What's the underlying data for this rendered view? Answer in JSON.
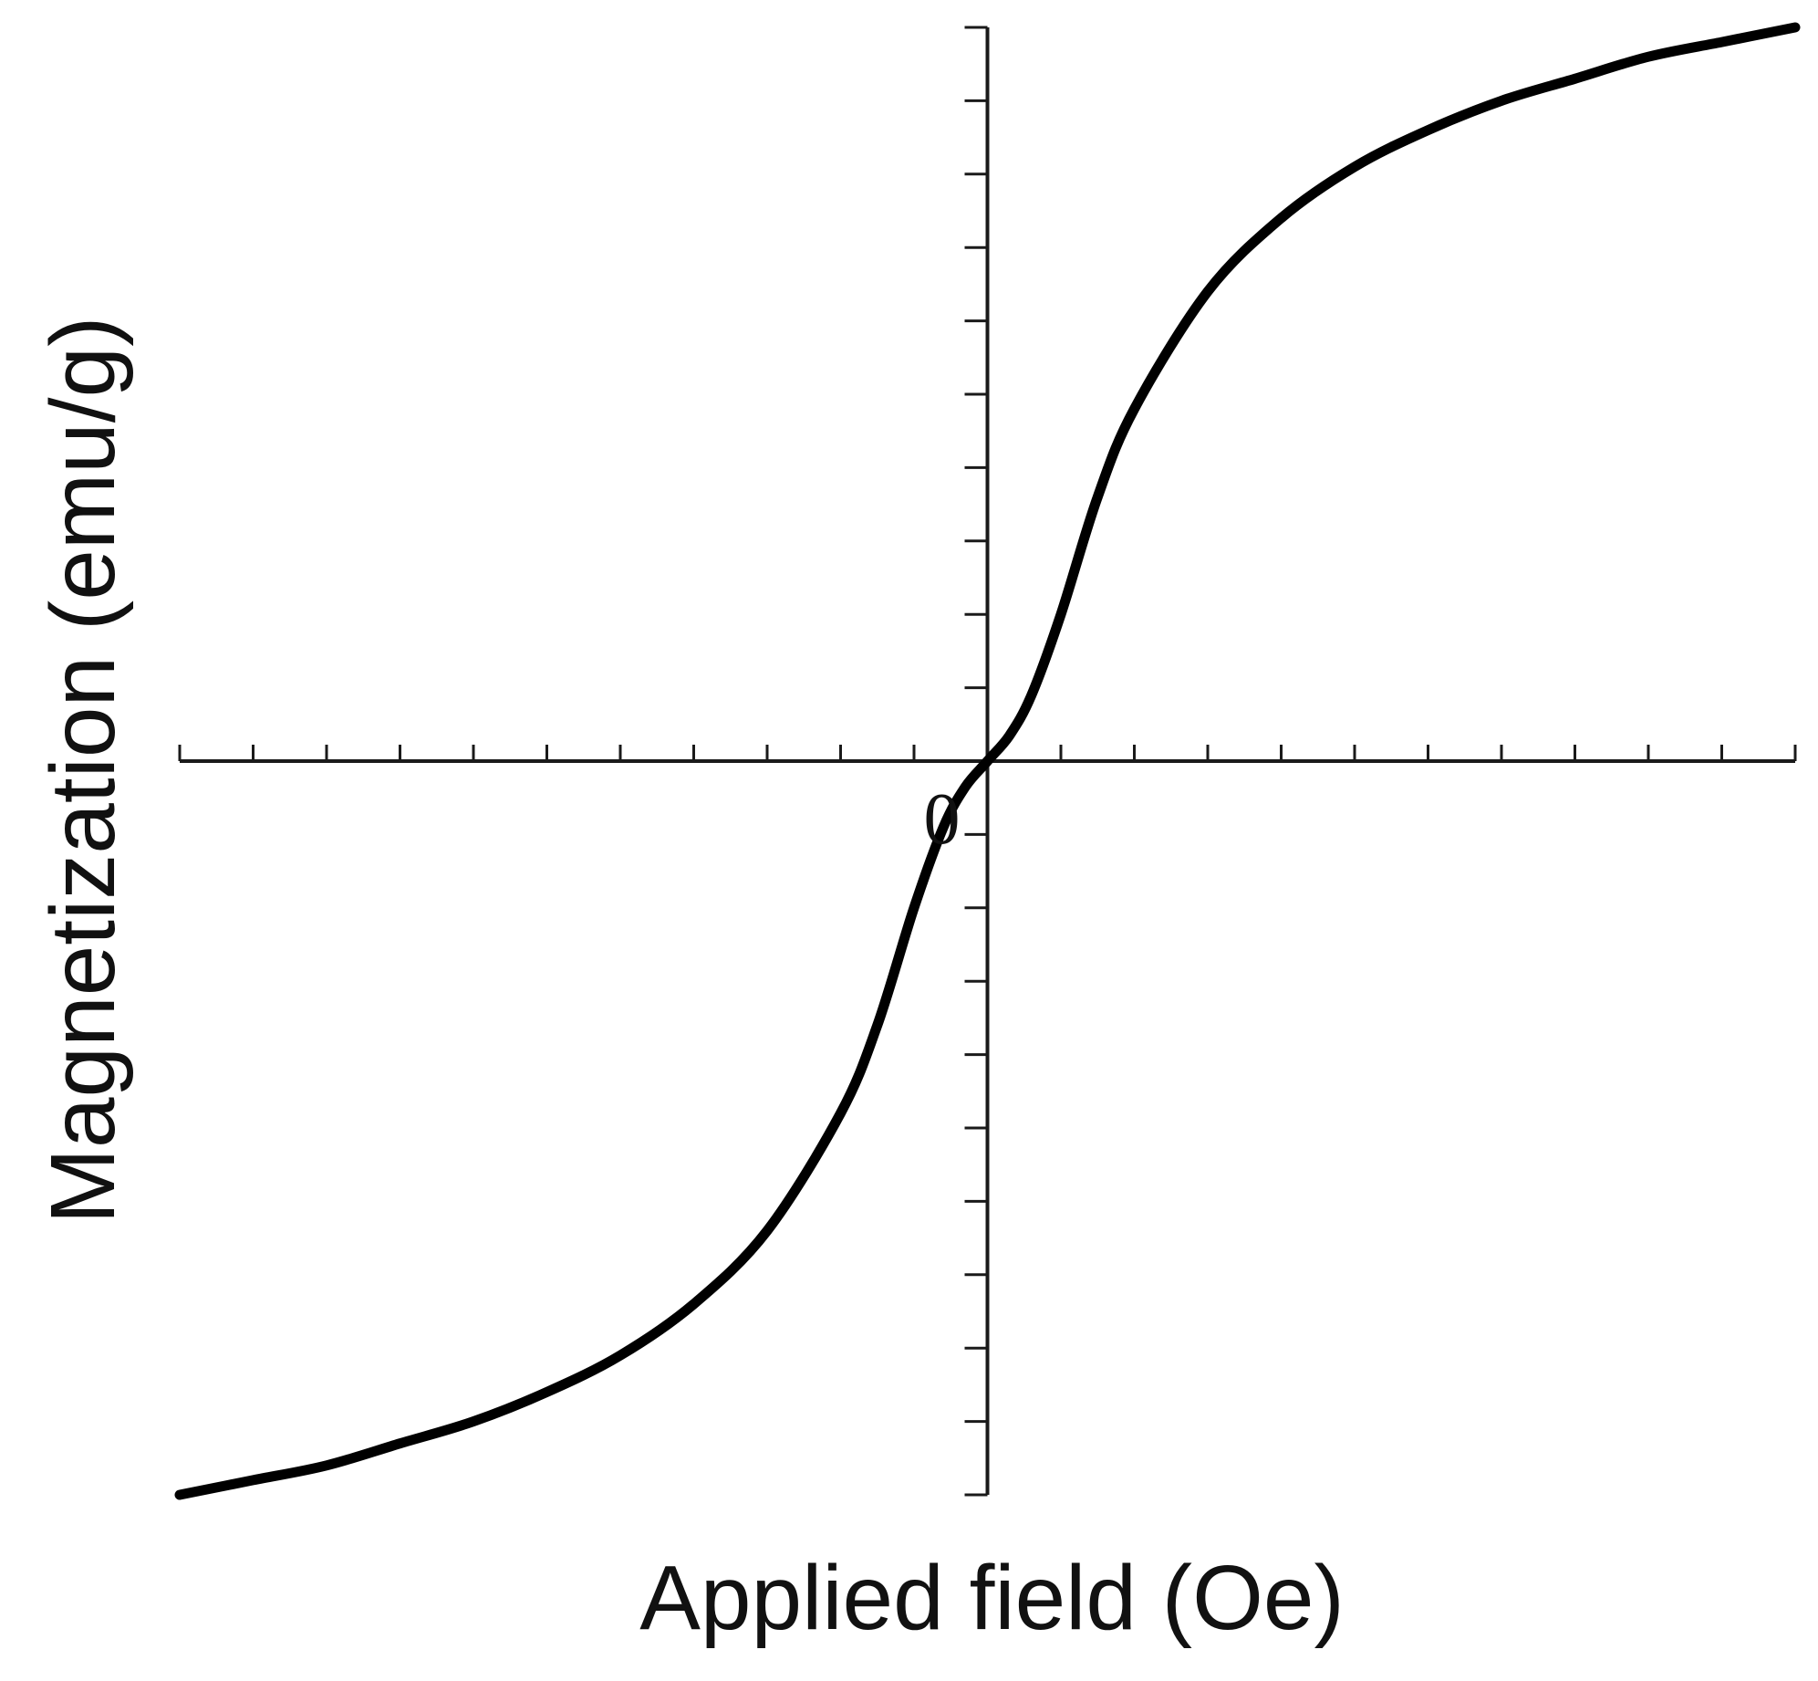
{
  "chart_data": {
    "type": "line",
    "title": "",
    "xlabel": "Applied field (Oe)",
    "ylabel": "Magnetization (emu/g)",
    "xlim": [
      -11,
      11
    ],
    "ylim": [
      -10,
      10
    ],
    "x_ticks": {
      "labels": [],
      "count": 23
    },
    "y_ticks": {
      "labels": [],
      "count": 21
    },
    "origin_label": "0",
    "grid": false,
    "series": [
      {
        "color": "#000000",
        "points": [
          [
            -11,
            -10.0
          ],
          [
            -10,
            -9.8
          ],
          [
            -9,
            -9.6
          ],
          [
            -8,
            -9.3
          ],
          [
            -7,
            -9.0
          ],
          [
            -6,
            -8.6
          ],
          [
            -5,
            -8.1
          ],
          [
            -4,
            -7.4
          ],
          [
            -3,
            -6.4
          ],
          [
            -2,
            -4.8
          ],
          [
            -1.5,
            -3.6
          ],
          [
            -1,
            -2.0
          ],
          [
            -0.6,
            -0.9
          ],
          [
            -0.3,
            -0.35
          ],
          [
            0,
            0
          ],
          [
            0.3,
            0.35
          ],
          [
            0.6,
            0.9
          ],
          [
            1,
            2.0
          ],
          [
            1.5,
            3.6
          ],
          [
            2,
            4.8
          ],
          [
            3,
            6.4
          ],
          [
            4,
            7.4
          ],
          [
            5,
            8.1
          ],
          [
            6,
            8.6
          ],
          [
            7,
            9.0
          ],
          [
            8,
            9.3
          ],
          [
            9,
            9.6
          ],
          [
            10,
            9.8
          ],
          [
            11,
            10.0
          ]
        ]
      }
    ]
  }
}
